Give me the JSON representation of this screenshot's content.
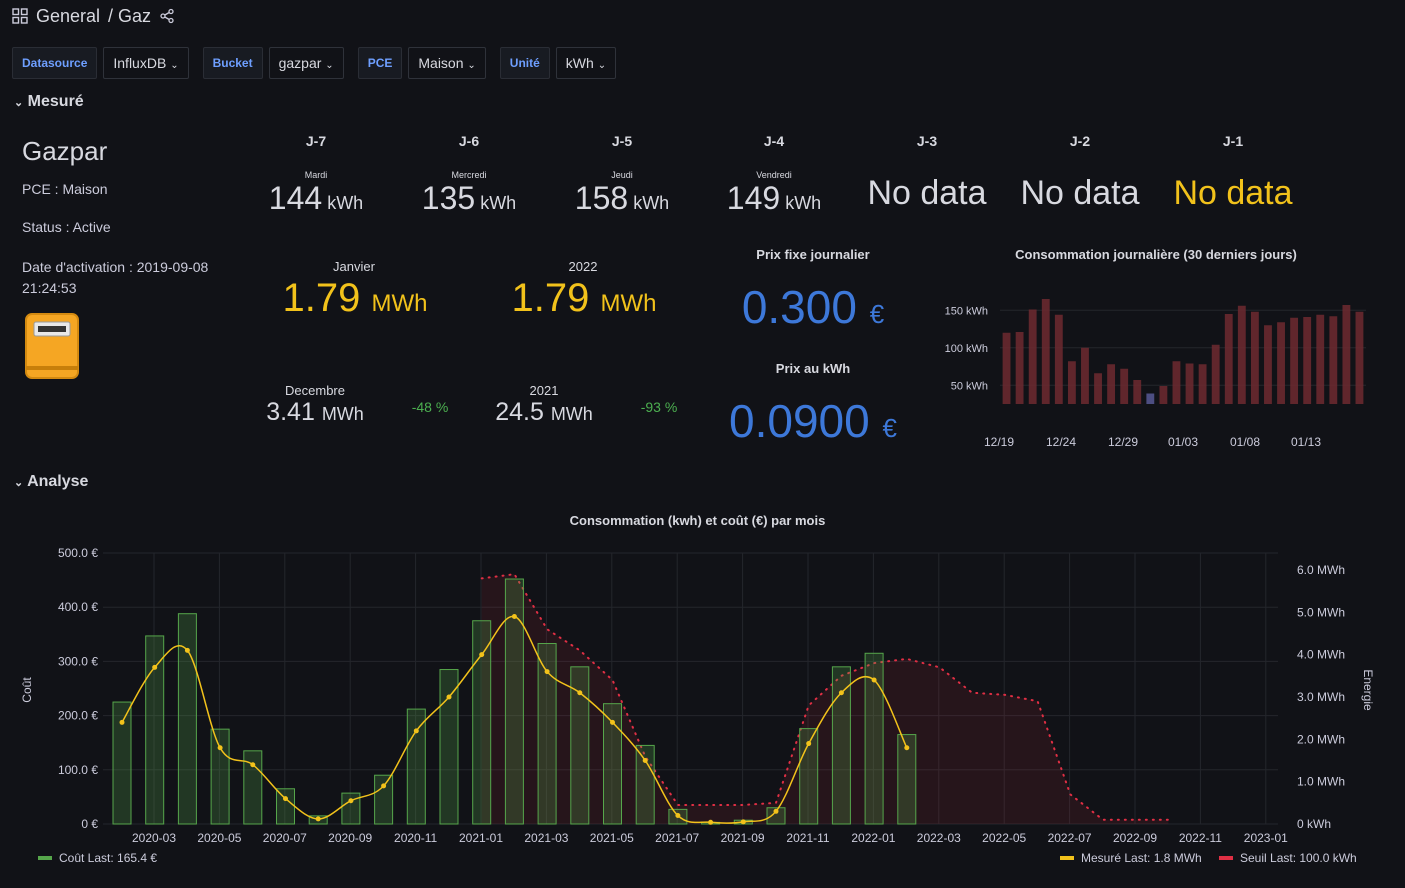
{
  "header": {
    "section": "General",
    "title": "/ Gaz"
  },
  "variables": [
    {
      "label": "Datasource",
      "value": "InfluxDB"
    },
    {
      "label": "Bucket",
      "value": "gazpar"
    },
    {
      "label": "PCE",
      "value": "Maison"
    },
    {
      "label": "Unité",
      "value": "kWh"
    }
  ],
  "rows": {
    "mesure": "Mesuré",
    "analyse": "Analyse"
  },
  "info": {
    "title": "Gazpar",
    "pce": "PCE : Maison",
    "status": "Status : Active",
    "activation_line1": "Date d'activation : 2019-09-08",
    "activation_line2": "21:24:53"
  },
  "days": [
    {
      "label": "J-7",
      "weekday": "Mardi",
      "value": "144",
      "unit": "kWh"
    },
    {
      "label": "J-6",
      "weekday": "Mercredi",
      "value": "135",
      "unit": "kWh"
    },
    {
      "label": "J-5",
      "weekday": "Jeudi",
      "value": "158",
      "unit": "kWh"
    },
    {
      "label": "J-4",
      "weekday": "Vendredi",
      "value": "149",
      "unit": "kWh"
    },
    {
      "label": "J-3",
      "nodata": "No data"
    },
    {
      "label": "J-2",
      "nodata": "No data"
    },
    {
      "label": "J-1",
      "nodata": "No data"
    }
  ],
  "month": {
    "label": "Janvier",
    "value": "1.79",
    "unit": "MWh"
  },
  "year": {
    "label": "2022",
    "value": "1.79",
    "unit": "MWh"
  },
  "prev_month": {
    "label": "Decembre",
    "value": "3.41",
    "unit": "MWh",
    "delta": "-48 %"
  },
  "prev_year": {
    "label": "2021",
    "value": "24.5",
    "unit": "MWh",
    "delta": "-93 %"
  },
  "prix_fixe": {
    "title": "Prix fixe journalier",
    "value": "0.300",
    "unit": "€"
  },
  "prix_kwh": {
    "title": "Prix au kWh",
    "value": "0.0900",
    "unit": "€"
  },
  "colors": {
    "gold": "#f2c21b",
    "blue": "#3d78d9",
    "green": "#56a64b",
    "red": "#e02f44"
  },
  "chart_data": [
    {
      "type": "bar",
      "title": "Consommation journalière (30 derniers jours)",
      "ytick_labels": [
        "150 kWh",
        "100 kWh",
        "50 kWh"
      ],
      "yticks": [
        150,
        100,
        50
      ],
      "ylim": [
        25,
        185
      ],
      "xtick_labels": [
        "12/19",
        "12/24",
        "12/29",
        "01/03",
        "01/08",
        "01/13"
      ],
      "values": [
        120,
        121,
        151,
        165,
        144,
        82,
        100,
        66,
        78,
        72,
        57,
        39,
        49,
        82,
        79,
        78,
        104,
        145,
        156,
        148,
        130,
        134,
        140,
        141,
        144,
        142,
        157,
        148
      ],
      "highlight_index": 11
    },
    {
      "type": "bar",
      "title": "Consommation (kwh) et coût (€) par mois",
      "yleft_label": "Coût",
      "yright_label": "Energie",
      "yleft_ticks": [
        "500.0 €",
        "400.0 €",
        "300.0 €",
        "200.0 €",
        "100.0 €",
        "0 €"
      ],
      "yright_ticks": [
        "6.0 MWh",
        "5.0 MWh",
        "4.0 MWh",
        "3.0 MWh",
        "2.0 MWh",
        "1.0 MWh",
        "0 kWh"
      ],
      "yleft_lim": [
        0,
        500
      ],
      "yright_lim": [
        0,
        6.4
      ],
      "x_labels": [
        "2020-03",
        "2020-05",
        "2020-07",
        "2020-09",
        "2020-11",
        "2021-01",
        "2021-03",
        "2021-05",
        "2021-07",
        "2021-09",
        "2021-11",
        "2022-01",
        "2022-03",
        "2022-05",
        "2022-07",
        "2022-09",
        "2022-11",
        "2023-01"
      ],
      "series": [
        {
          "name": "Coût",
          "legend": "Coût   Last: 165.4 €",
          "values": [
            225,
            347,
            388,
            175,
            135,
            65,
            15,
            57,
            90,
            212,
            285,
            375,
            452,
            333,
            290,
            222,
            145,
            27,
            3,
            7,
            30,
            176,
            290,
            315,
            165
          ]
        },
        {
          "name": "Mesuré",
          "legend": "Mesuré   Last: 1.8 MWh",
          "values": [
            2.4,
            3.7,
            4.1,
            1.8,
            1.4,
            0.6,
            0.12,
            0.55,
            0.9,
            2.2,
            3.0,
            4.0,
            4.9,
            3.6,
            3.1,
            2.4,
            1.5,
            0.2,
            0.04,
            0.05,
            0.3,
            1.9,
            3.1,
            3.4,
            1.8
          ]
        },
        {
          "name": "Seuil",
          "legend": "Seuil   Last: 100.0 kWh",
          "values": [
            null,
            null,
            null,
            null,
            null,
            null,
            null,
            null,
            null,
            null,
            null,
            5.8,
            5.9,
            4.6,
            4.1,
            3.4,
            1.6,
            0.45,
            0.45,
            0.45,
            0.5,
            2.8,
            3.5,
            3.8,
            3.9,
            3.7,
            3.1,
            3.05,
            2.9,
            0.7,
            0.1,
            0.1,
            0.1
          ]
        }
      ]
    }
  ]
}
